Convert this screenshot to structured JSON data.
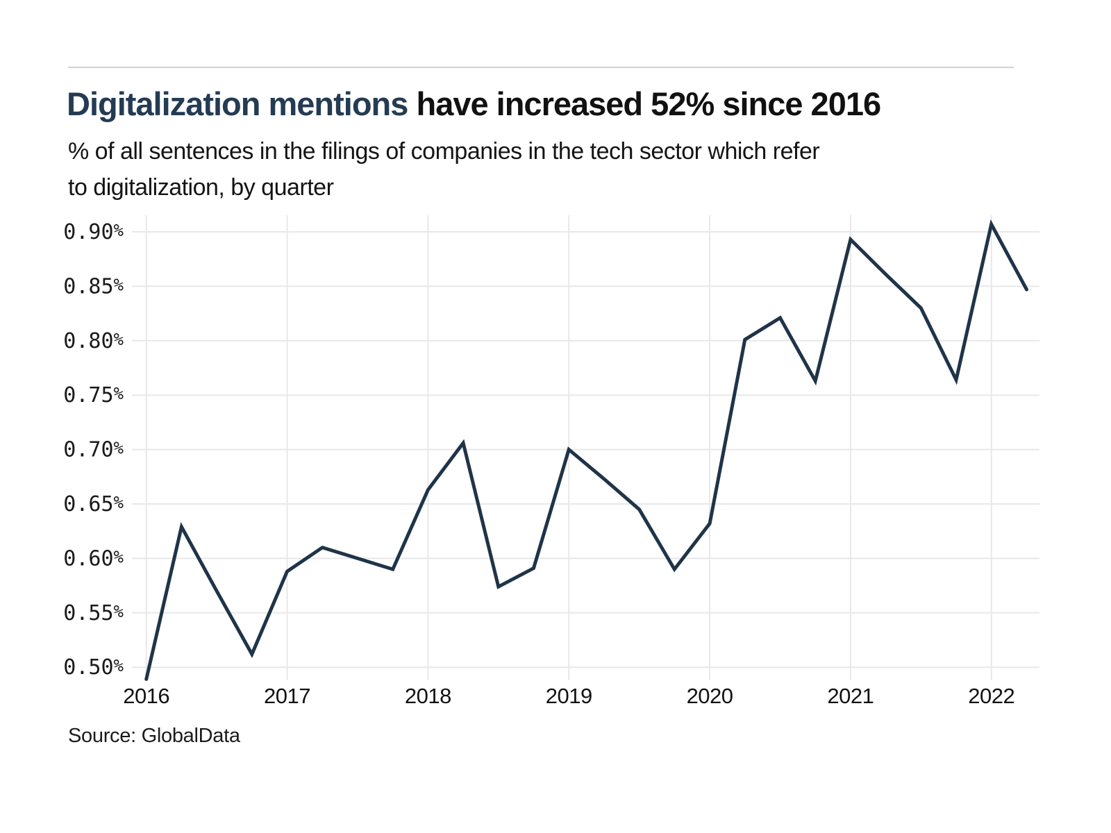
{
  "header": {
    "title_highlight": "Digitalization mentions",
    "title_rest": " have increased 52% since 2016",
    "subtitle_line1": "% of all sentences in the filings of companies in the tech sector which refer",
    "subtitle_line2": "to digitalization, by quarter"
  },
  "footer": {
    "source": "Source: GlobalData"
  },
  "colors": {
    "title_accent": "#243b53",
    "title_text": "#111111",
    "line": "#1f3448",
    "grid": "#e8e8e8",
    "axis_text": "#1a1a1a",
    "divider": "#d2d2d2",
    "background": "#ffffff"
  },
  "chart_data": {
    "type": "line",
    "title": "Digitalization mentions have increased 52% since 2016",
    "subtitle": "% of all sentences in the filings of companies in the tech sector which refer to digitalization, by quarter",
    "source": "Source: GlobalData",
    "x_unit": "quarter",
    "x": [
      "2016-Q1",
      "2016-Q2",
      "2016-Q3",
      "2016-Q4",
      "2017-Q1",
      "2017-Q2",
      "2017-Q3",
      "2017-Q4",
      "2018-Q1",
      "2018-Q2",
      "2018-Q3",
      "2018-Q4",
      "2019-Q1",
      "2019-Q2",
      "2019-Q3",
      "2019-Q4",
      "2020-Q1",
      "2020-Q2",
      "2020-Q3",
      "2020-Q4",
      "2021-Q1",
      "2021-Q2",
      "2021-Q3",
      "2021-Q4",
      "2022-Q1",
      "2022-Q2"
    ],
    "values": [
      0.489,
      0.629,
      0.57,
      0.512,
      0.588,
      0.61,
      0.6,
      0.59,
      0.663,
      0.706,
      0.574,
      0.591,
      0.7,
      0.673,
      0.645,
      0.59,
      0.632,
      0.801,
      0.821,
      0.763,
      0.893,
      0.861,
      0.83,
      0.764,
      0.907,
      0.847
    ],
    "x_tick_labels": [
      "2016",
      "2017",
      "2018",
      "2019",
      "2020",
      "2021",
      "2022"
    ],
    "y_tick_labels": [
      "0.50%",
      "0.55%",
      "0.60%",
      "0.65%",
      "0.70%",
      "0.75%",
      "0.80%",
      "0.85%",
      "0.90%"
    ],
    "ylim": [
      0.485,
      0.915
    ],
    "grid": true,
    "legend": null,
    "line_width": 5
  }
}
